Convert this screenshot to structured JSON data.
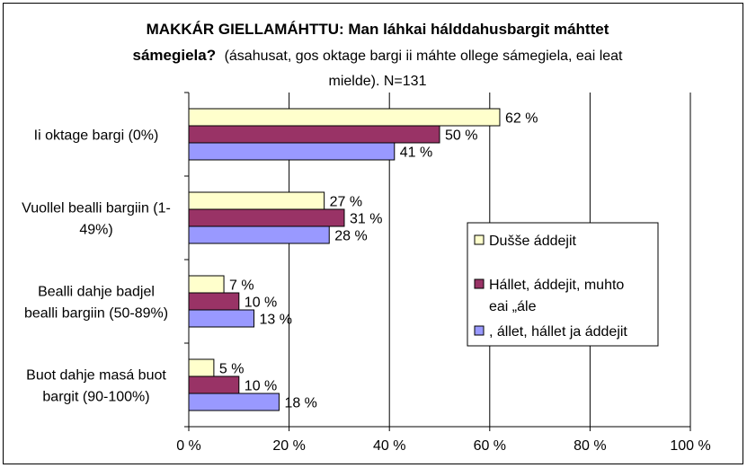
{
  "chart_data": {
    "type": "bar",
    "orientation": "horizontal",
    "title_bold_line1": "MAKKÁR GIELLAMÁHTTU: Man láhkai hálddahusbargit máhttet",
    "title_bold_line2": "sámegiela?",
    "title_normal_line2": "(ásahusat, gos oktage bargi ii máhte ollege sámegiela, eai leat",
    "title_normal_line3": "mielde). N=131",
    "categories": [
      [
        "Ii oktage bargi (0%)"
      ],
      [
        "Vuollel bealli bargiin (1-",
        "49%)"
      ],
      [
        "Bealli dahje badjel",
        "bealli bargiin (50-89%)"
      ],
      [
        "Buot dahje masá buot",
        "bargit (90-100%)"
      ]
    ],
    "series": [
      {
        "name": "Dušše áddejit",
        "values": [
          62,
          27,
          7,
          5
        ],
        "color": "#FFFFCC"
      },
      {
        "name": "Hállet, áddejit, muhto eai „ále",
        "legend_lines": [
          "Hállet, áddejit, muhto",
          "eai „ále"
        ],
        "values": [
          50,
          31,
          10,
          10
        ],
        "color": "#993366"
      },
      {
        "name": ", állet, hállet ja áddejit",
        "values": [
          41,
          28,
          13,
          18
        ],
        "color": "#9999FF"
      }
    ],
    "value_labels": [
      [
        "62 %",
        "27 %",
        "7 %",
        "5 %"
      ],
      [
        "50 %",
        "31 %",
        "10 %",
        "10 %"
      ],
      [
        "41 %",
        "28 %",
        "13 %",
        "18 %"
      ]
    ],
    "xlim": [
      0,
      100
    ],
    "xticks": [
      0,
      20,
      40,
      60,
      80,
      100
    ],
    "xtick_labels": [
      "0 %",
      "20 %",
      "40 %",
      "60 %",
      "80 %",
      "100 %"
    ],
    "grid": "vertical",
    "legend_position": "right"
  }
}
